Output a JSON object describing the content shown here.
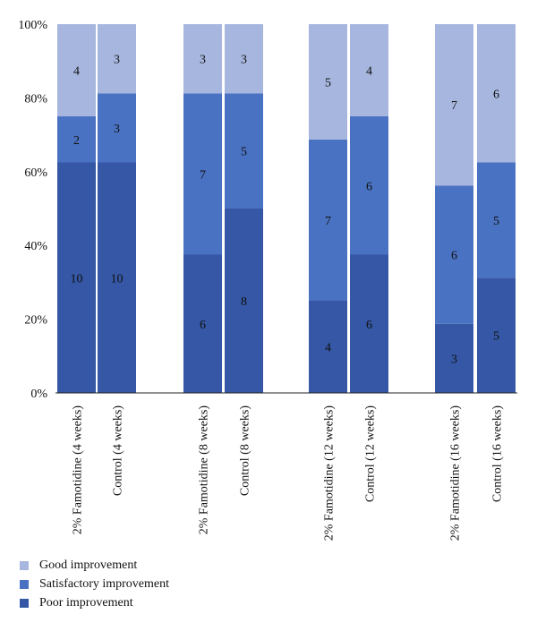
{
  "chart_data": {
    "type": "bar",
    "stacked": true,
    "normalized": true,
    "categories": [
      "2% Famotidine (4 weeks)",
      "Control (4 weeks)",
      "2% Famotidine (8 weeks)",
      "Control (8 weeks)",
      "2% Famotidine (12 weeks)",
      "Control (12 weeks)",
      "2% Famotidine (16 weeks)",
      "Control (16 weeks)"
    ],
    "series": [
      {
        "name": "Poor improvement",
        "color": "#3557a5",
        "values": [
          10,
          10,
          6,
          8,
          4,
          6,
          3,
          5
        ]
      },
      {
        "name": "Satisfactory improvement",
        "color": "#4a72c2",
        "values": [
          2,
          3,
          7,
          5,
          7,
          6,
          6,
          5
        ]
      },
      {
        "name": "Good improvement",
        "color": "#a7b6de",
        "values": [
          4,
          3,
          3,
          3,
          5,
          4,
          7,
          6
        ]
      }
    ],
    "y_ticks": [
      "0%",
      "20%",
      "40%",
      "60%",
      "80%",
      "100%"
    ],
    "ylim": [
      0,
      100
    ],
    "grid": false,
    "legend_position": "bottom-left",
    "legend_order": [
      "Good improvement",
      "Satisfactory improvement",
      "Poor improvement"
    ]
  }
}
